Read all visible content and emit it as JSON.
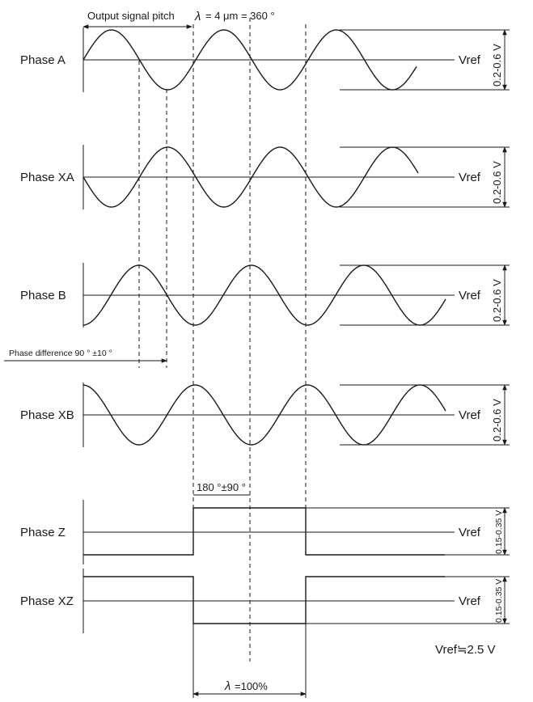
{
  "title": {
    "pitch_label": "Output signal pitch",
    "lambda_symbol": "λ",
    "pitch_value": "= 4 μm = 360 °"
  },
  "phases": [
    {
      "id": "A",
      "label": "Phase A",
      "type": "sine",
      "sign": 1,
      "period": "λ",
      "vref": "Vref",
      "amplitude": "0.2-0.6 V"
    },
    {
      "id": "XA",
      "label": "Phase XA",
      "type": "sine",
      "sign": -1,
      "period": "λ",
      "vref": "Vref",
      "amplitude": "0.2-0.6 V"
    },
    {
      "id": "B",
      "label": "Phase B",
      "type": "sine",
      "sign": 1,
      "shift": "90 °",
      "period": "λ",
      "vref": "Vref",
      "amplitude": "0.2-0.6 V"
    },
    {
      "id": "XB",
      "label": "Phase XB",
      "type": "sine",
      "sign": -1,
      "shift": "90 °",
      "period": "λ",
      "vref": "Vref",
      "amplitude": "0.2-0.6 V"
    },
    {
      "id": "Z",
      "label": "Phase Z",
      "type": "pulse",
      "active": "high",
      "width": "λ",
      "vref": "Vref",
      "amplitude": "0.15-0.35 V"
    },
    {
      "id": "XZ",
      "label": "Phase XZ",
      "type": "pulse",
      "active": "low",
      "width": "λ",
      "vref": "Vref",
      "amplitude": "0.15-0.35 V"
    }
  ],
  "phase_difference": "Phase difference 90 ° ±10 °",
  "z_phase_tolerance": "180 °±90 °",
  "vref_note": "Vref≒2.5 V",
  "pulse_width": {
    "lambda_symbol": "λ",
    "value": "=100%"
  }
}
